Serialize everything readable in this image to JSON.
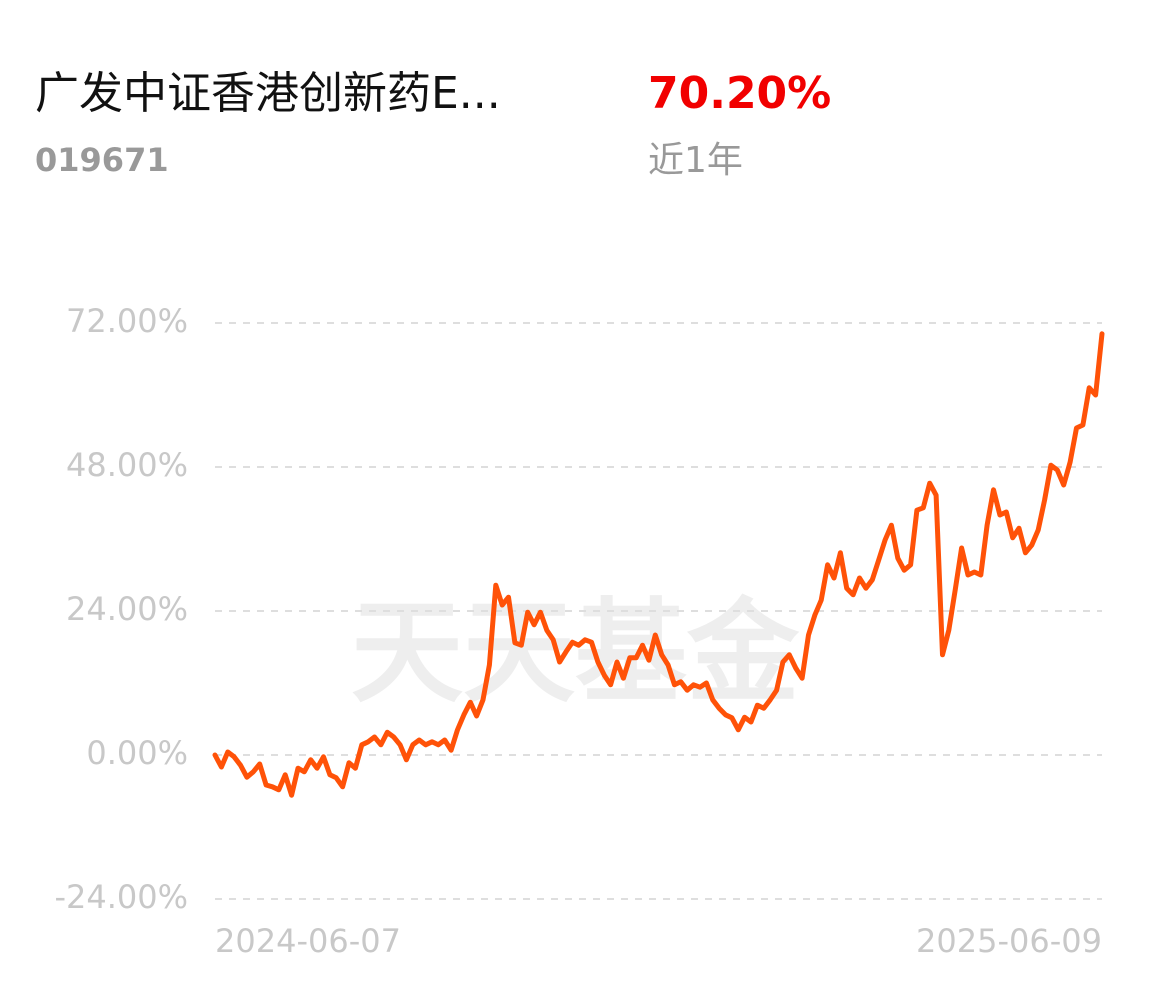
{
  "header": {
    "title": "广发中证香港创新药E...",
    "code": "019671",
    "return": "70.20%",
    "period": "近1年"
  },
  "watermark": "天天基金",
  "chart_data": {
    "type": "line",
    "ylim": [
      -24,
      72
    ],
    "yticks": [
      {
        "value": -24,
        "label": "-24.00%"
      },
      {
        "value": 0,
        "label": "0.00%"
      },
      {
        "value": 24,
        "label": "24.00%"
      },
      {
        "value": 48,
        "label": "48.00%"
      },
      {
        "value": 72,
        "label": "72.00%"
      }
    ],
    "grid": true,
    "categories": [
      "2024-06-07",
      null,
      null,
      null,
      null,
      null,
      null,
      null,
      null,
      null,
      null,
      null,
      null,
      null,
      null,
      null,
      null,
      null,
      null,
      null,
      null,
      null,
      null,
      null,
      null,
      null,
      null,
      null,
      null,
      null,
      null,
      null,
      null,
      null,
      null,
      null,
      null,
      null,
      null,
      null,
      null,
      null,
      null,
      null,
      null,
      null,
      null,
      null,
      null,
      null,
      null,
      null,
      null,
      null,
      null,
      null,
      null,
      null,
      null,
      null,
      null,
      null,
      null,
      null,
      null,
      null,
      null,
      null,
      null,
      null,
      null,
      null,
      null,
      null,
      null,
      null,
      null,
      null,
      null,
      null,
      null,
      null,
      null,
      null,
      null,
      null,
      null,
      null,
      null,
      null,
      null,
      null,
      null,
      null,
      null,
      null,
      null,
      null,
      null,
      null,
      null,
      null,
      null,
      null,
      null,
      null,
      null,
      null,
      null,
      null,
      null,
      null,
      null,
      null,
      null,
      null,
      null,
      null,
      null,
      null,
      null,
      null,
      null,
      null,
      null,
      null,
      null,
      null,
      null,
      null,
      null,
      null,
      null,
      null,
      null,
      null,
      null,
      null,
      null,
      "2025-06-09"
    ],
    "series": [
      {
        "color": "#ff5208",
        "values": [
          0,
          -2,
          0.5,
          -0.3,
          -1.7,
          -3.7,
          -2.8,
          -1.5,
          -5,
          -5.3,
          -5.8,
          -3.3,
          -6.7,
          -2.2,
          -2.8,
          -0.8,
          -2.2,
          -0.3,
          -3.3,
          -3.8,
          -5.3,
          -1.3,
          -2.2,
          1.7,
          2.2,
          3,
          1.7,
          3.8,
          3,
          1.7,
          -0.8,
          1.7,
          2.5,
          1.7,
          2.2,
          1.7,
          2.5,
          0.8,
          4.2,
          6.7,
          8.8,
          6.5,
          9.2,
          15,
          28.3,
          25,
          26.3,
          18.7,
          18.3,
          23.8,
          21.7,
          23.8,
          20.8,
          19.2,
          15.5,
          17.2,
          18.8,
          18.3,
          19.2,
          18.8,
          15.5,
          13.3,
          11.7,
          15.5,
          12.8,
          16.2,
          16.2,
          18.3,
          15.8,
          20,
          16.7,
          15,
          11.7,
          12.2,
          10.8,
          11.7,
          11.3,
          12,
          9.2,
          7.8,
          6.7,
          6.2,
          4.2,
          6.3,
          5.5,
          8.3,
          7.8,
          9.2,
          10.8,
          15.5,
          16.7,
          14.5,
          12.8,
          20,
          23.3,
          25.8,
          31.7,
          29.5,
          33.7,
          27.8,
          26.7,
          29.5,
          27.8,
          29.2,
          32.5,
          35.8,
          38.3,
          32.8,
          30.8,
          31.7,
          40.8,
          41.2,
          45.3,
          43.3,
          16.7,
          20.8,
          27.5,
          34.5,
          30,
          30.5,
          30,
          38.3,
          44.2,
          40,
          40.5,
          36.2,
          37.8,
          33.7,
          35,
          37.5,
          42.5,
          48.3,
          47.5,
          45,
          48.8,
          54.5,
          55,
          61.2,
          60,
          70.2
        ]
      }
    ]
  }
}
